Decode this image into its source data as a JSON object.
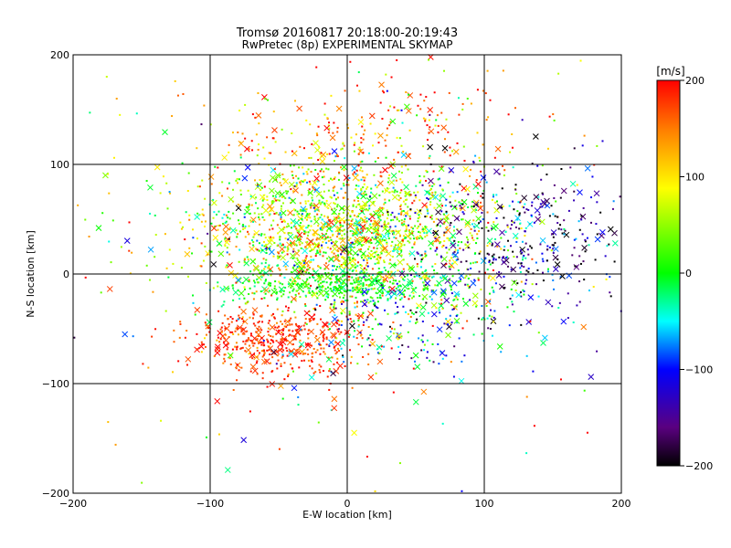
{
  "chart_data": {
    "type": "scatter",
    "title": "Tromsø 20160817 20:18:00-20:19:43",
    "subtitle": "RwPretec (8p) EXPERIMENTAL SKYMAP",
    "xlabel": "E-W location [km]",
    "ylabel": "N-S location [km]",
    "xlim": [
      -200,
      200
    ],
    "ylim": [
      -200,
      200
    ],
    "xticks": [
      -200,
      -100,
      0,
      100,
      200
    ],
    "yticks": [
      -200,
      -100,
      0,
      100,
      200
    ],
    "grid": true,
    "colorbar": {
      "label": "[m/s]",
      "min": -200,
      "max": 200,
      "ticks": [
        -200,
        -100,
        0,
        100,
        200
      ],
      "colormap": "rainbow (black-purple-blue-cyan-green-yellow-red)"
    },
    "markers": [
      "small dot",
      "x"
    ],
    "clusters": [
      {
        "cx": 0,
        "cy": 40,
        "sx": 55,
        "sy": 30,
        "n": 1700,
        "v": 60,
        "sv": 70
      },
      {
        "cx": 130,
        "cy": 30,
        "sx": 40,
        "sy": 35,
        "n": 380,
        "v": -150,
        "sv": 60
      },
      {
        "cx": -50,
        "cy": -60,
        "sx": 35,
        "sy": 18,
        "n": 480,
        "v": 175,
        "sv": 25
      },
      {
        "cx": 0,
        "cy": -10,
        "sx": 45,
        "sy": 8,
        "n": 350,
        "v": 0,
        "sv": 20
      },
      {
        "cx": 30,
        "cy": -40,
        "sx": 40,
        "sy": 25,
        "n": 250,
        "v": -40,
        "sv": 80
      },
      {
        "cx": 10,
        "cy": 130,
        "sx": 60,
        "sy": 30,
        "n": 250,
        "v": 150,
        "sv": 60
      },
      {
        "cx": 0,
        "cy": 0,
        "sx": 130,
        "sy": 100,
        "n": 280,
        "v": 50,
        "sv": 130
      }
    ]
  }
}
